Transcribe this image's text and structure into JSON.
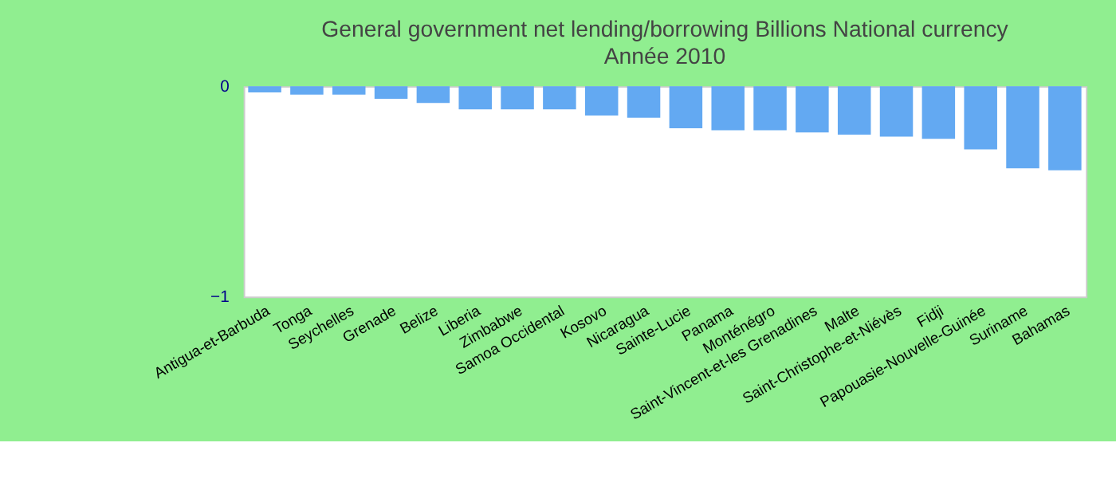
{
  "chart_data": {
    "type": "bar",
    "title": "General government net lending/borrowing Billions National currency",
    "subtitle": "Année 2010",
    "categories": [
      "Antigua-et-Barbuda",
      "Tonga",
      "Seychelles",
      "Grenade",
      "Belize",
      "Liberia",
      "Zimbabwe",
      "Samoa Occidental",
      "Kosovo",
      "Nicaragua",
      "Sainte-Lucie",
      "Panama",
      "Monténégro",
      "Saint-Vincent-et-les Grenadines",
      "Malte",
      "Saint-Christophe-et-Niévès",
      "Fidji",
      "Papouasie-Nouvelle-Guinée",
      "Suriname",
      "Bahamas"
    ],
    "values": [
      -0.03,
      -0.04,
      -0.04,
      -0.06,
      -0.08,
      -0.11,
      -0.11,
      -0.11,
      -0.14,
      -0.15,
      -0.2,
      -0.21,
      -0.21,
      -0.22,
      -0.23,
      -0.24,
      -0.25,
      -0.3,
      -0.39,
      -0.4
    ],
    "color": "#63a9f2",
    "ylim": [
      -1,
      0
    ],
    "yticks": [
      -1,
      0
    ],
    "grid": false
  }
}
